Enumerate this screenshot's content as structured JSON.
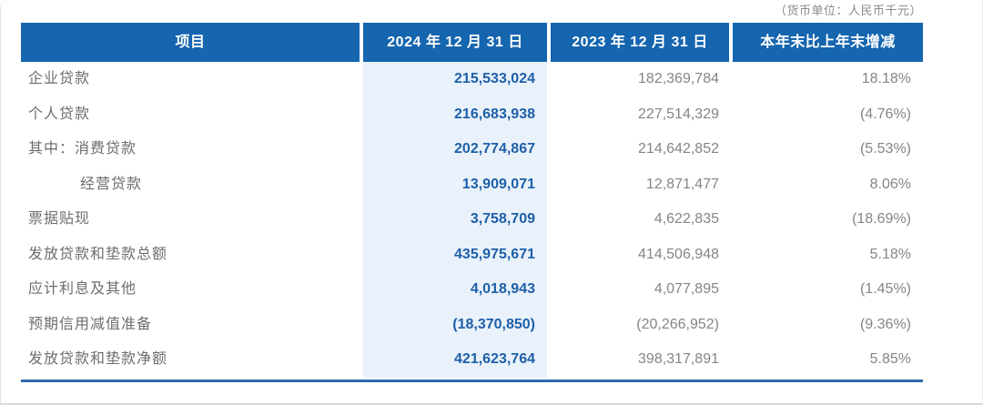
{
  "unit_note": "（货币单位：人民币千元）",
  "table": {
    "columns": {
      "item": "项目",
      "date_2024": "2024 年 12 月 31 日",
      "date_2023": "2023 年 12 月 31 日",
      "change": "本年末比上年末增减"
    },
    "rows": [
      {
        "label": "企业贷款",
        "indent": 0,
        "v2024": "215,533,024",
        "v2023": "182,369,784",
        "change": "18.18%"
      },
      {
        "label": "个人贷款",
        "indent": 0,
        "v2024": "216,683,938",
        "v2023": "227,514,329",
        "change": "(4.76%)"
      },
      {
        "label": "其中：消费贷款",
        "indent": 0,
        "v2024": "202,774,867",
        "v2023": "214,642,852",
        "change": "(5.53%)"
      },
      {
        "label": "经营贷款",
        "indent": 1,
        "v2024": "13,909,071",
        "v2023": "12,871,477",
        "change": "8.06%"
      },
      {
        "label": "票据贴现",
        "indent": 0,
        "v2024": "3,758,709",
        "v2023": "4,622,835",
        "change": "(18.69%)"
      },
      {
        "label": "发放贷款和垫款总额",
        "indent": 0,
        "v2024": "435,975,671",
        "v2023": "414,506,948",
        "change": "5.18%"
      },
      {
        "label": "应计利息及其他",
        "indent": 0,
        "v2024": "4,018,943",
        "v2023": "4,077,895",
        "change": "(1.45%)"
      },
      {
        "label": "预期信用减值准备",
        "indent": 0,
        "v2024": "(18,370,850)",
        "v2023": "(20,266,952)",
        "change": "(9.36%)"
      },
      {
        "label": "发放贷款和垫款净额",
        "indent": 0,
        "v2024": "421,623,764",
        "v2023": "398,317,891",
        "change": "5.85%"
      }
    ]
  },
  "colors": {
    "header_bg": "#1565af",
    "header_text": "#ffffff",
    "highlight_bg": "#e9f2fa",
    "value_2024_text": "#1e5fa9",
    "value_2023_text": "#858585",
    "change_text": "#858585",
    "label_text": "#6e6e6e",
    "note_text": "#8a8a8a",
    "bottom_rule": "#2c6cab"
  }
}
